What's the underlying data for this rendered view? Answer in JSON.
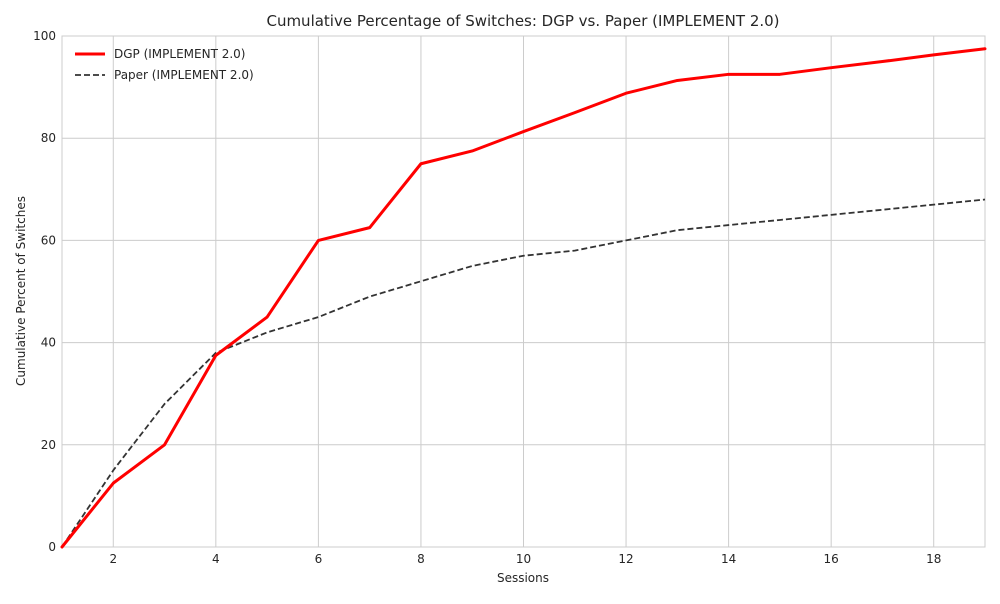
{
  "chart_data": {
    "type": "line",
    "title": "Cumulative Percentage of Switches: DGP vs. Paper (IMPLEMENT 2.0)",
    "xlabel": "Sessions",
    "ylabel": "Cumulative Percent of Switches",
    "xlim": [
      1,
      19
    ],
    "ylim": [
      0,
      100
    ],
    "xticks": [
      2,
      4,
      6,
      8,
      10,
      12,
      14,
      16,
      18
    ],
    "yticks": [
      0,
      20,
      40,
      60,
      80,
      100
    ],
    "grid": true,
    "legend_position": "top-left",
    "series": [
      {
        "name": "DGP (IMPLEMENT 2.0)",
        "color": "#ff0000",
        "style": "solid",
        "x": [
          1,
          2,
          3,
          4,
          5,
          6,
          7,
          8,
          9,
          10,
          11,
          12,
          13,
          14,
          15,
          16,
          17,
          18,
          19
        ],
        "values": [
          0,
          12.5,
          20,
          37.5,
          45,
          60,
          62.5,
          75,
          77.5,
          81.3,
          85,
          88.8,
          91.3,
          92.5,
          92.5,
          93.8,
          95,
          96.3,
          97.5
        ]
      },
      {
        "name": "Paper (IMPLEMENT 2.0)",
        "color": "#333333",
        "style": "dashed",
        "x": [
          1,
          2,
          3,
          4,
          5,
          6,
          7,
          8,
          9,
          10,
          11,
          12,
          13,
          14,
          15,
          16,
          17,
          18,
          19
        ],
        "values": [
          0,
          15,
          28,
          38,
          42,
          45,
          49,
          52,
          55,
          57,
          58,
          60,
          62,
          63,
          64,
          65,
          66,
          67,
          68
        ]
      }
    ]
  }
}
